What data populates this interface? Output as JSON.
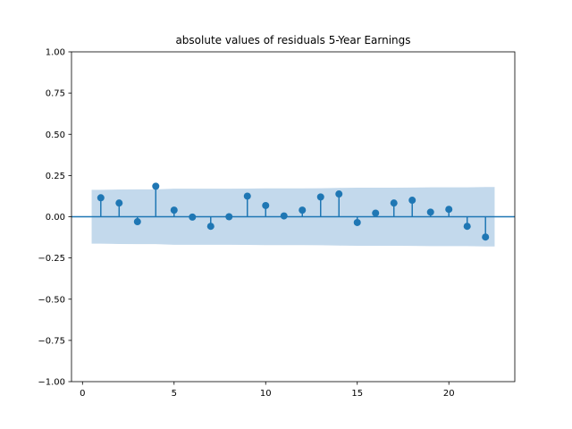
{
  "chart_data": {
    "type": "stem",
    "title": "absolute values of residuals 5-Year Earnings",
    "xlabel": "",
    "ylabel": "",
    "xlim": [
      -0.6,
      23.6
    ],
    "ylim": [
      -1.0,
      1.0
    ],
    "xticks": [
      0,
      5,
      10,
      15,
      20
    ],
    "xtick_labels": [
      "0",
      "5",
      "10",
      "15",
      "20"
    ],
    "yticks": [
      -1.0,
      -0.75,
      -0.5,
      -0.25,
      0.0,
      0.25,
      0.5,
      0.75,
      1.0
    ],
    "ytick_labels": [
      "−1.00",
      "−0.75",
      "−0.50",
      "−0.25",
      "0.00",
      "0.25",
      "0.50",
      "0.75",
      "1.00"
    ],
    "grid": false,
    "series": [
      {
        "x": [
          1,
          2,
          3,
          4,
          5,
          6,
          7,
          8,
          9,
          10,
          11,
          12,
          13,
          14,
          15,
          16,
          17,
          18,
          19,
          20,
          21,
          22
        ],
        "values": [
          0.115,
          0.083,
          -0.03,
          0.185,
          0.04,
          -0.002,
          -0.058,
          0.0,
          0.125,
          0.068,
          0.005,
          0.04,
          0.12,
          0.138,
          -0.035,
          0.022,
          0.083,
          0.1,
          0.028,
          0.045,
          -0.058,
          -0.123
        ]
      }
    ],
    "confidence_band": {
      "x": [
        0.5,
        1,
        2,
        3,
        4,
        5,
        6,
        7,
        8,
        9,
        10,
        11,
        12,
        13,
        14,
        15,
        16,
        17,
        18,
        19,
        20,
        21,
        22,
        22.5
      ],
      "upper": [
        0.163,
        0.163,
        0.165,
        0.166,
        0.166,
        0.17,
        0.17,
        0.17,
        0.17,
        0.171,
        0.172,
        0.172,
        0.172,
        0.173,
        0.175,
        0.176,
        0.176,
        0.176,
        0.177,
        0.178,
        0.178,
        0.178,
        0.18,
        0.18
      ]
    },
    "colors": {
      "marker": "#1f77b4",
      "band": "#c3d9ec",
      "zero_line": "#1f77b4"
    }
  }
}
